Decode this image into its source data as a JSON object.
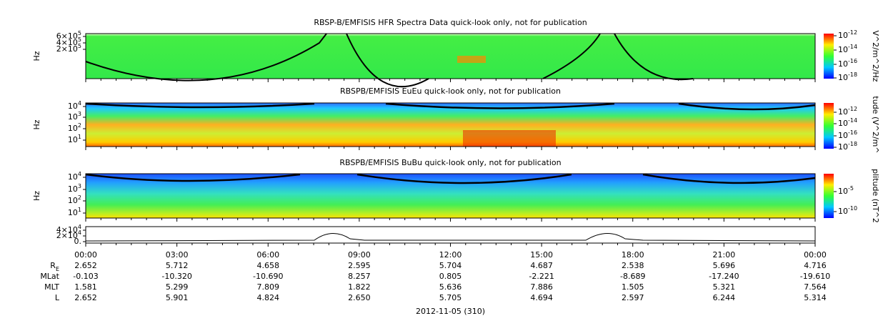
{
  "panels": [
    {
      "title": "RBSP-B/EMFISIS  HFR Spectra Data quick-look only, not for publication",
      "ylabel": "Hz",
      "yticks": [
        {
          "base": "6×10",
          "exp": "5"
        },
        {
          "base": "4×10",
          "exp": "5"
        },
        {
          "base": "2×10",
          "exp": "5"
        }
      ],
      "colorbar_label": "V^2/m^2/Hz",
      "colorbar_ticks": [
        {
          "base": "10",
          "exp": "-12"
        },
        {
          "base": "10",
          "exp": "-14"
        },
        {
          "base": "10",
          "exp": "-16"
        },
        {
          "base": "10",
          "exp": "-18"
        }
      ]
    },
    {
      "title": "RBSPB/EMFISIS  EuEu quick-look only, not for publication",
      "ylabel": "Hz",
      "yticks": [
        {
          "base": "10",
          "exp": "4"
        },
        {
          "base": "10",
          "exp": "3"
        },
        {
          "base": "10",
          "exp": "2"
        },
        {
          "base": "10",
          "exp": "1"
        }
      ],
      "colorbar_label": "tude (V^2/m^",
      "colorbar_ticks": [
        {
          "base": "10",
          "exp": "-12"
        },
        {
          "base": "10",
          "exp": "-14"
        },
        {
          "base": "10",
          "exp": "-16"
        },
        {
          "base": "10",
          "exp": "-18"
        }
      ]
    },
    {
      "title": "RBSPB/EMFISIS  BuBu quick-look only, not for publication",
      "ylabel": "Hz",
      "yticks": [
        {
          "base": "10",
          "exp": "4"
        },
        {
          "base": "10",
          "exp": "3"
        },
        {
          "base": "10",
          "exp": "2"
        },
        {
          "base": "10",
          "exp": "1"
        }
      ],
      "colorbar_label": "plitude (nT^2",
      "colorbar_ticks": [
        {
          "base": "10",
          "exp": "-5"
        },
        {
          "base": "10",
          "exp": "-10"
        }
      ]
    },
    {
      "yticks": [
        {
          "base": "4×10",
          "exp": "4"
        },
        {
          "base": "2×10",
          "exp": "4"
        },
        {
          "base": "0.",
          "exp": ""
        }
      ]
    }
  ],
  "xticks": [
    "00:00",
    "03:00",
    "06:00",
    "09:00",
    "12:00",
    "15:00",
    "18:00",
    "21:00",
    "00:00"
  ],
  "ephemeris": [
    {
      "label": "R",
      "sub": "E",
      "values": [
        "2.652",
        "5.712",
        "4.658",
        "2.595",
        "5.704",
        "4.687",
        "2.538",
        "5.696",
        "4.716"
      ]
    },
    {
      "label": "MLat",
      "sub": "",
      "values": [
        "-0.103",
        "-10.320",
        "-10.690",
        "8.257",
        "0.805",
        "-2.221",
        "-8.689",
        "-17.240",
        "-19.610"
      ]
    },
    {
      "label": "MLT",
      "sub": "",
      "values": [
        "1.581",
        "5.299",
        "7.809",
        "1.822",
        "5.636",
        "7.886",
        "1.505",
        "5.321",
        "7.564"
      ]
    },
    {
      "label": "L",
      "sub": "",
      "values": [
        "2.652",
        "5.901",
        "4.824",
        "2.650",
        "5.705",
        "4.694",
        "2.597",
        "6.244",
        "5.314"
      ]
    }
  ],
  "date": "2012-11-05 (310)"
}
